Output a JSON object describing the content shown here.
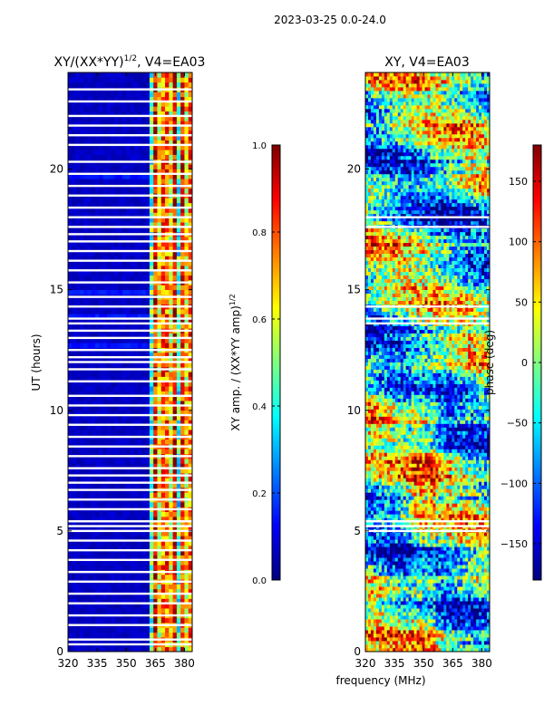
{
  "suptitle": "2023-03-25 0.0-24.0",
  "shared_xlabel": "frequency (MHz)",
  "colors": {
    "jet": [
      "#00007f",
      "#0000ff",
      "#007fff",
      "#00ffff",
      "#7fff7f",
      "#ffff00",
      "#ff7f00",
      "#ff0000",
      "#7f0000"
    ],
    "flag": "#ffffff",
    "axis": "#000000"
  },
  "chart_data": [
    {
      "type": "heatmap",
      "title_main": "XY/(XX*YY)",
      "title_sup": "1/2",
      "title_tail": ", V4=EA03",
      "xlabel": "",
      "ylabel": "UT (hours)",
      "xlim": [
        320,
        384
      ],
      "ylim": [
        0,
        24
      ],
      "xticks": [
        320,
        335,
        350,
        365,
        380
      ],
      "xtick_labels": [
        "320",
        "335",
        "350",
        "365",
        "380"
      ],
      "yticks": [
        0,
        5,
        10,
        15,
        20
      ],
      "ytick_labels": [
        "0",
        "5",
        "10",
        "15",
        "20"
      ],
      "flag_hours": [
        0.3,
        0.5,
        1.1,
        1.5,
        2.0,
        2.4,
        2.9,
        3.3,
        3.8,
        4.2,
        4.6,
        5.0,
        5.2,
        5.4,
        5.9,
        6.3,
        6.7,
        7.0,
        7.3,
        7.6,
        8.1,
        8.5,
        8.9,
        9.4,
        9.8,
        10.2,
        10.6,
        11.2,
        11.7,
        12.0,
        12.2,
        12.5,
        13.0,
        13.3,
        13.6,
        13.8,
        14.3,
        14.7,
        15.3,
        15.8,
        16.2,
        16.6,
        17.0,
        17.3,
        17.6,
        18.0,
        18.4,
        18.9,
        19.3,
        19.8,
        20.3,
        21.0,
        21.4,
        21.8,
        22.2,
        22.8,
        23.3
      ],
      "colorbar": {
        "label": "XY amp. / (XX*YY amp)",
        "label_sup": "1/2",
        "range": [
          0.0,
          1.0
        ],
        "ticks": [
          0.0,
          0.2,
          0.4,
          0.6,
          0.8,
          1.0
        ],
        "tick_labels": [
          "0.0",
          "0.2",
          "0.4",
          "0.6",
          "0.8",
          "1.0"
        ]
      }
    },
    {
      "type": "heatmap",
      "title_main": "XY, V4=EA03",
      "xlabel": "frequency (MHz)",
      "ylabel": "",
      "xlim": [
        320,
        384
      ],
      "ylim": [
        0,
        24
      ],
      "xticks": [
        320,
        335,
        350,
        365,
        380
      ],
      "xtick_labels": [
        "320",
        "335",
        "350",
        "365",
        "380"
      ],
      "yticks": [
        0,
        5,
        10,
        15,
        20
      ],
      "ytick_labels": [
        "0",
        "5",
        "10",
        "15",
        "20"
      ],
      "flag_hours": [
        5.0,
        5.2,
        5.4,
        13.6,
        13.8,
        14.3,
        17.6,
        18.0
      ],
      "colorbar": {
        "label": "phase (deg)",
        "range": [
          -180,
          180
        ],
        "ticks": [
          -150,
          -100,
          -50,
          0,
          50,
          100,
          150
        ],
        "tick_labels": [
          "−150",
          "−100",
          "−50",
          "0",
          "50",
          "100",
          "150"
        ]
      }
    }
  ]
}
